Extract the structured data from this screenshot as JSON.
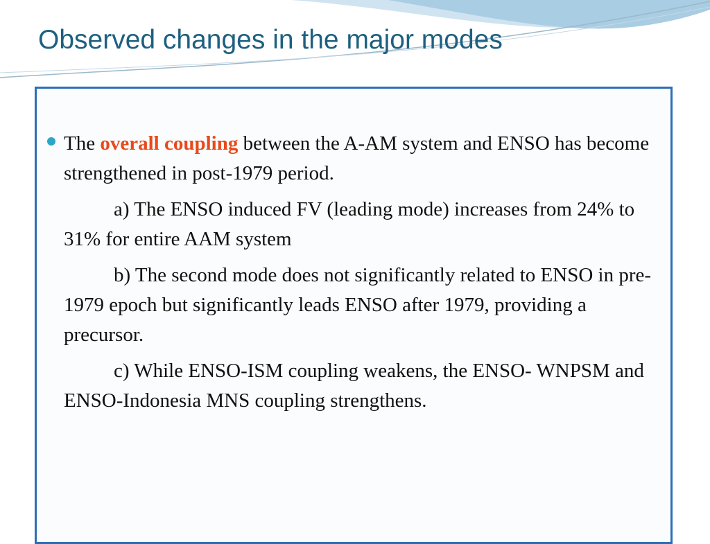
{
  "title": "Observed changes in the major modes",
  "bullet": {
    "before": "The ",
    "emphasis": "overall coupling",
    "after": " between the A-AM system and ENSO has become strengthened in post-1979 period."
  },
  "sub_points": [
    "a) The ENSO induced FV (leading mode) increases from 24% to 31% for entire AAM system",
    "b) The second mode does not significantly related to ENSO in pre-1979 epoch but significantly leads ENSO after 1979, providing a precursor.",
    "c) While ENSO-ISM coupling weakens, the ENSO- WNPSM and ENSO-Indonesia MNS coupling strengthens."
  ]
}
